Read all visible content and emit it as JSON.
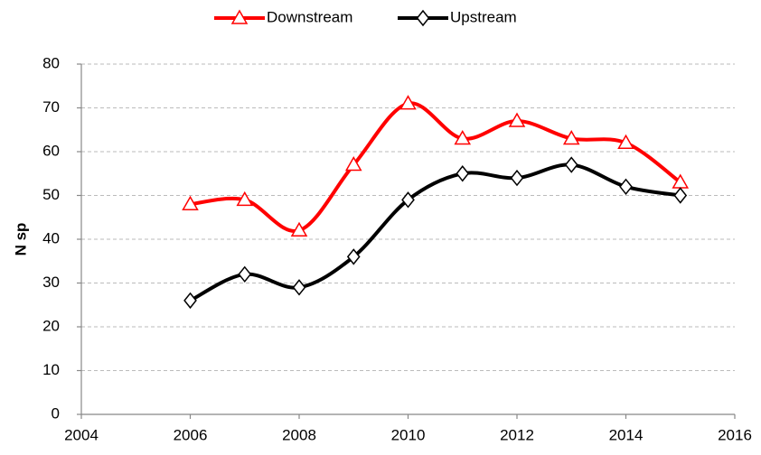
{
  "chart_data": {
    "type": "line",
    "y_label": "N sp",
    "x": [
      2006,
      2007,
      2008,
      2009,
      2010,
      2011,
      2012,
      2013,
      2014,
      2015
    ],
    "series": [
      {
        "name": "Downstream",
        "color": "#ff0000",
        "marker": "triangle",
        "values": [
          48,
          49,
          42,
          57,
          71,
          63,
          67,
          63,
          62,
          53
        ]
      },
      {
        "name": "Upstream",
        "color": "#000000",
        "marker": "diamond",
        "values": [
          26,
          32,
          29,
          36,
          49,
          55,
          54,
          57,
          52,
          50
        ]
      }
    ],
    "xlim": [
      2004,
      2016
    ],
    "xticks": [
      2004,
      2006,
      2008,
      2010,
      2012,
      2014,
      2016
    ],
    "ylim": [
      0,
      80
    ],
    "yticks": [
      0,
      10,
      20,
      30,
      40,
      50,
      60,
      70,
      80
    ],
    "grid": true,
    "smooth": true,
    "legend": "top"
  }
}
